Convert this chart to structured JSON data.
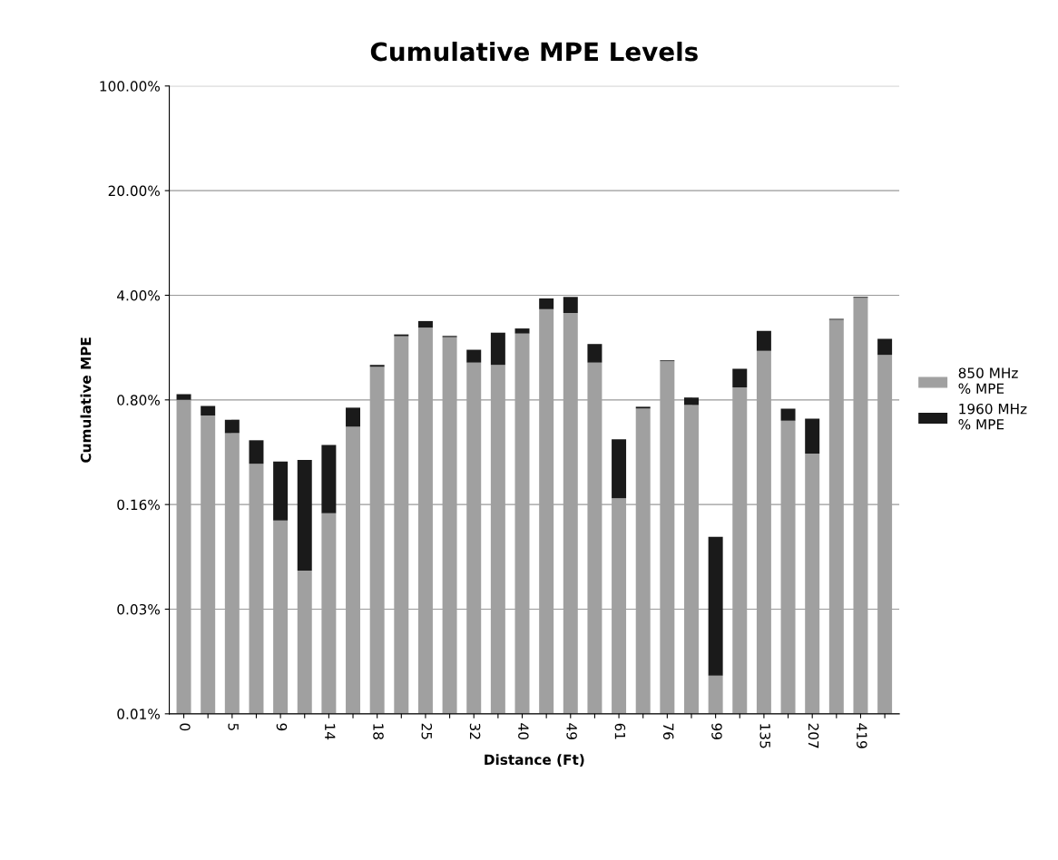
{
  "chart_data": {
    "type": "bar",
    "title": "Cumulative MPE Levels",
    "xlabel": "Distance (Ft)",
    "ylabel": "Cumulative MPE",
    "categories": [
      "0",
      null,
      "5",
      null,
      "9",
      null,
      "14",
      null,
      "18",
      null,
      "25",
      null,
      "32",
      null,
      "40",
      null,
      "49",
      null,
      "61",
      null,
      "76",
      null,
      "99",
      null,
      "135",
      null,
      "207",
      null,
      "419",
      null
    ],
    "stacked": true,
    "log": true,
    "grid": "y",
    "legend": "right",
    "ylim": [
      0.0064,
      100
    ],
    "yticks": [
      {
        "value": 0.0064,
        "label": "0.01%"
      },
      {
        "value": 0.032,
        "label": "0.03%"
      },
      {
        "value": 0.16,
        "label": "0.16%"
      },
      {
        "value": 0.8,
        "label": "0.80%"
      },
      {
        "value": 4,
        "label": "4.00%"
      },
      {
        "value": 20,
        "label": "20.00%"
      },
      {
        "value": 100,
        "label": "100.00%"
      }
    ],
    "series": [
      {
        "name": "850 MHz\n% MPE",
        "color": "#a0a0a0",
        "values": [
          0.8,
          0.63,
          0.48,
          0.3,
          0.125,
          0.058,
          0.14,
          0.53,
          1.33,
          2.13,
          2.43,
          2.1,
          1.42,
          1.37,
          2.22,
          3.23,
          3.04,
          1.42,
          0.176,
          0.7,
          1.45,
          0.74,
          0.0115,
          0.97,
          1.7,
          0.58,
          0.35,
          2.74,
          3.85,
          1.6
        ]
      },
      {
        "name": "1960 MHz\n% MPE",
        "color": "#1a1a1a",
        "values": [
          0.074,
          0.1,
          0.11,
          0.13,
          0.185,
          0.26,
          0.26,
          0.18,
          0.04,
          0.06,
          0.26,
          0.04,
          0.31,
          0.88,
          0.18,
          0.58,
          0.86,
          0.47,
          0.26,
          0.02,
          0.02,
          0.09,
          0.086,
          0.32,
          0.61,
          0.12,
          0.25,
          0.04,
          0.05,
          0.45
        ]
      }
    ]
  }
}
